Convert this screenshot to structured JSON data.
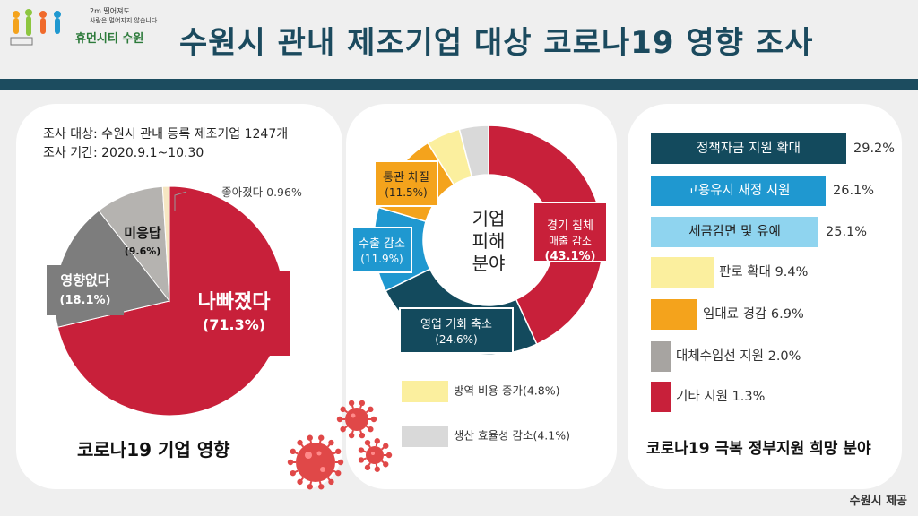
{
  "header": {
    "logo_line1": "2m 떨어져도",
    "logo_line2": "사람은 멀어지지 않습니다",
    "logo_name": "휴먼시티 수원",
    "title": "수원시 관내 제조기업 대상 코로나19 영향 조사"
  },
  "panel1": {
    "info_line1": "조사 대상: 수원시 관내 등록 제조기업 1247개",
    "info_line2": "조사 기간: 2020.9.1~10.30",
    "caption": "코로나19 기업 영향"
  },
  "panel2": {
    "center_line1": "기업",
    "center_line2": "피해",
    "center_line3": "분야",
    "legend1": "방역 비용 증가(4.8%)",
    "legend2": "생산 효율성 감소(4.1%)"
  },
  "panel3": {
    "caption": "코로나19 극복 정부지원 희망 분야"
  },
  "footer": "수원시 제공",
  "colors": {
    "red": "#c8203a",
    "gray": "#7d7d7d",
    "lightgray": "#b5b3b0",
    "cream": "#f6e6c2",
    "navy": "#134a5d",
    "blue": "#1f98d0",
    "lightblue": "#8fd4ef",
    "orange": "#f4a31c",
    "yellow": "#fbef9e",
    "paleGray": "#d9d9d9",
    "midGray": "#a7a4a1"
  },
  "chart_data": [
    {
      "type": "pie",
      "title": "코로나19 기업 영향",
      "slices": [
        {
          "label": "나빠졌다",
          "value": 71.3,
          "value_text": "(71.3%)"
        },
        {
          "label": "영향없다",
          "value": 18.1,
          "value_text": "(18.1%)"
        },
        {
          "label": "미응답",
          "value": 9.6,
          "value_text": "(9.6%)"
        },
        {
          "label": "좋아졌다",
          "value": 0.96,
          "value_text": "0.96%"
        }
      ]
    },
    {
      "type": "pie",
      "title": "기업 피해 분야",
      "slices": [
        {
          "label": "경기 침체 매출 감소",
          "line1": "경기 침체",
          "line2": "매출 감소",
          "value": 43.1,
          "value_text": "(43.1%)"
        },
        {
          "label": "영업 기회 축소",
          "value": 24.6,
          "value_text": "(24.6%)"
        },
        {
          "label": "수출 감소",
          "value": 11.9,
          "value_text": "(11.9%)"
        },
        {
          "label": "통관 차질",
          "value": 11.5,
          "value_text": "(11.5%)"
        },
        {
          "label": "방역 비용 증가",
          "value": 4.8,
          "value_text": "4.8%"
        },
        {
          "label": "생산 효율성 감소",
          "value": 4.1,
          "value_text": "4.1%"
        }
      ]
    },
    {
      "type": "bar",
      "orientation": "horizontal",
      "title": "코로나19 극복 정부지원 희망 분야",
      "categories": [
        "정책자금 지원 확대",
        "고용유지 재정 지원",
        "세금감면 및 유예",
        "판로 확대",
        "임대료 경감",
        "대체수입선 지원",
        "기타 지원"
      ],
      "values": [
        29.2,
        26.1,
        25.1,
        9.4,
        6.9,
        2.0,
        1.3
      ],
      "value_labels": [
        "29.2%",
        "26.1%",
        "25.1%",
        "9.4%",
        "6.9%",
        "2.0%",
        "1.3%"
      ]
    }
  ]
}
